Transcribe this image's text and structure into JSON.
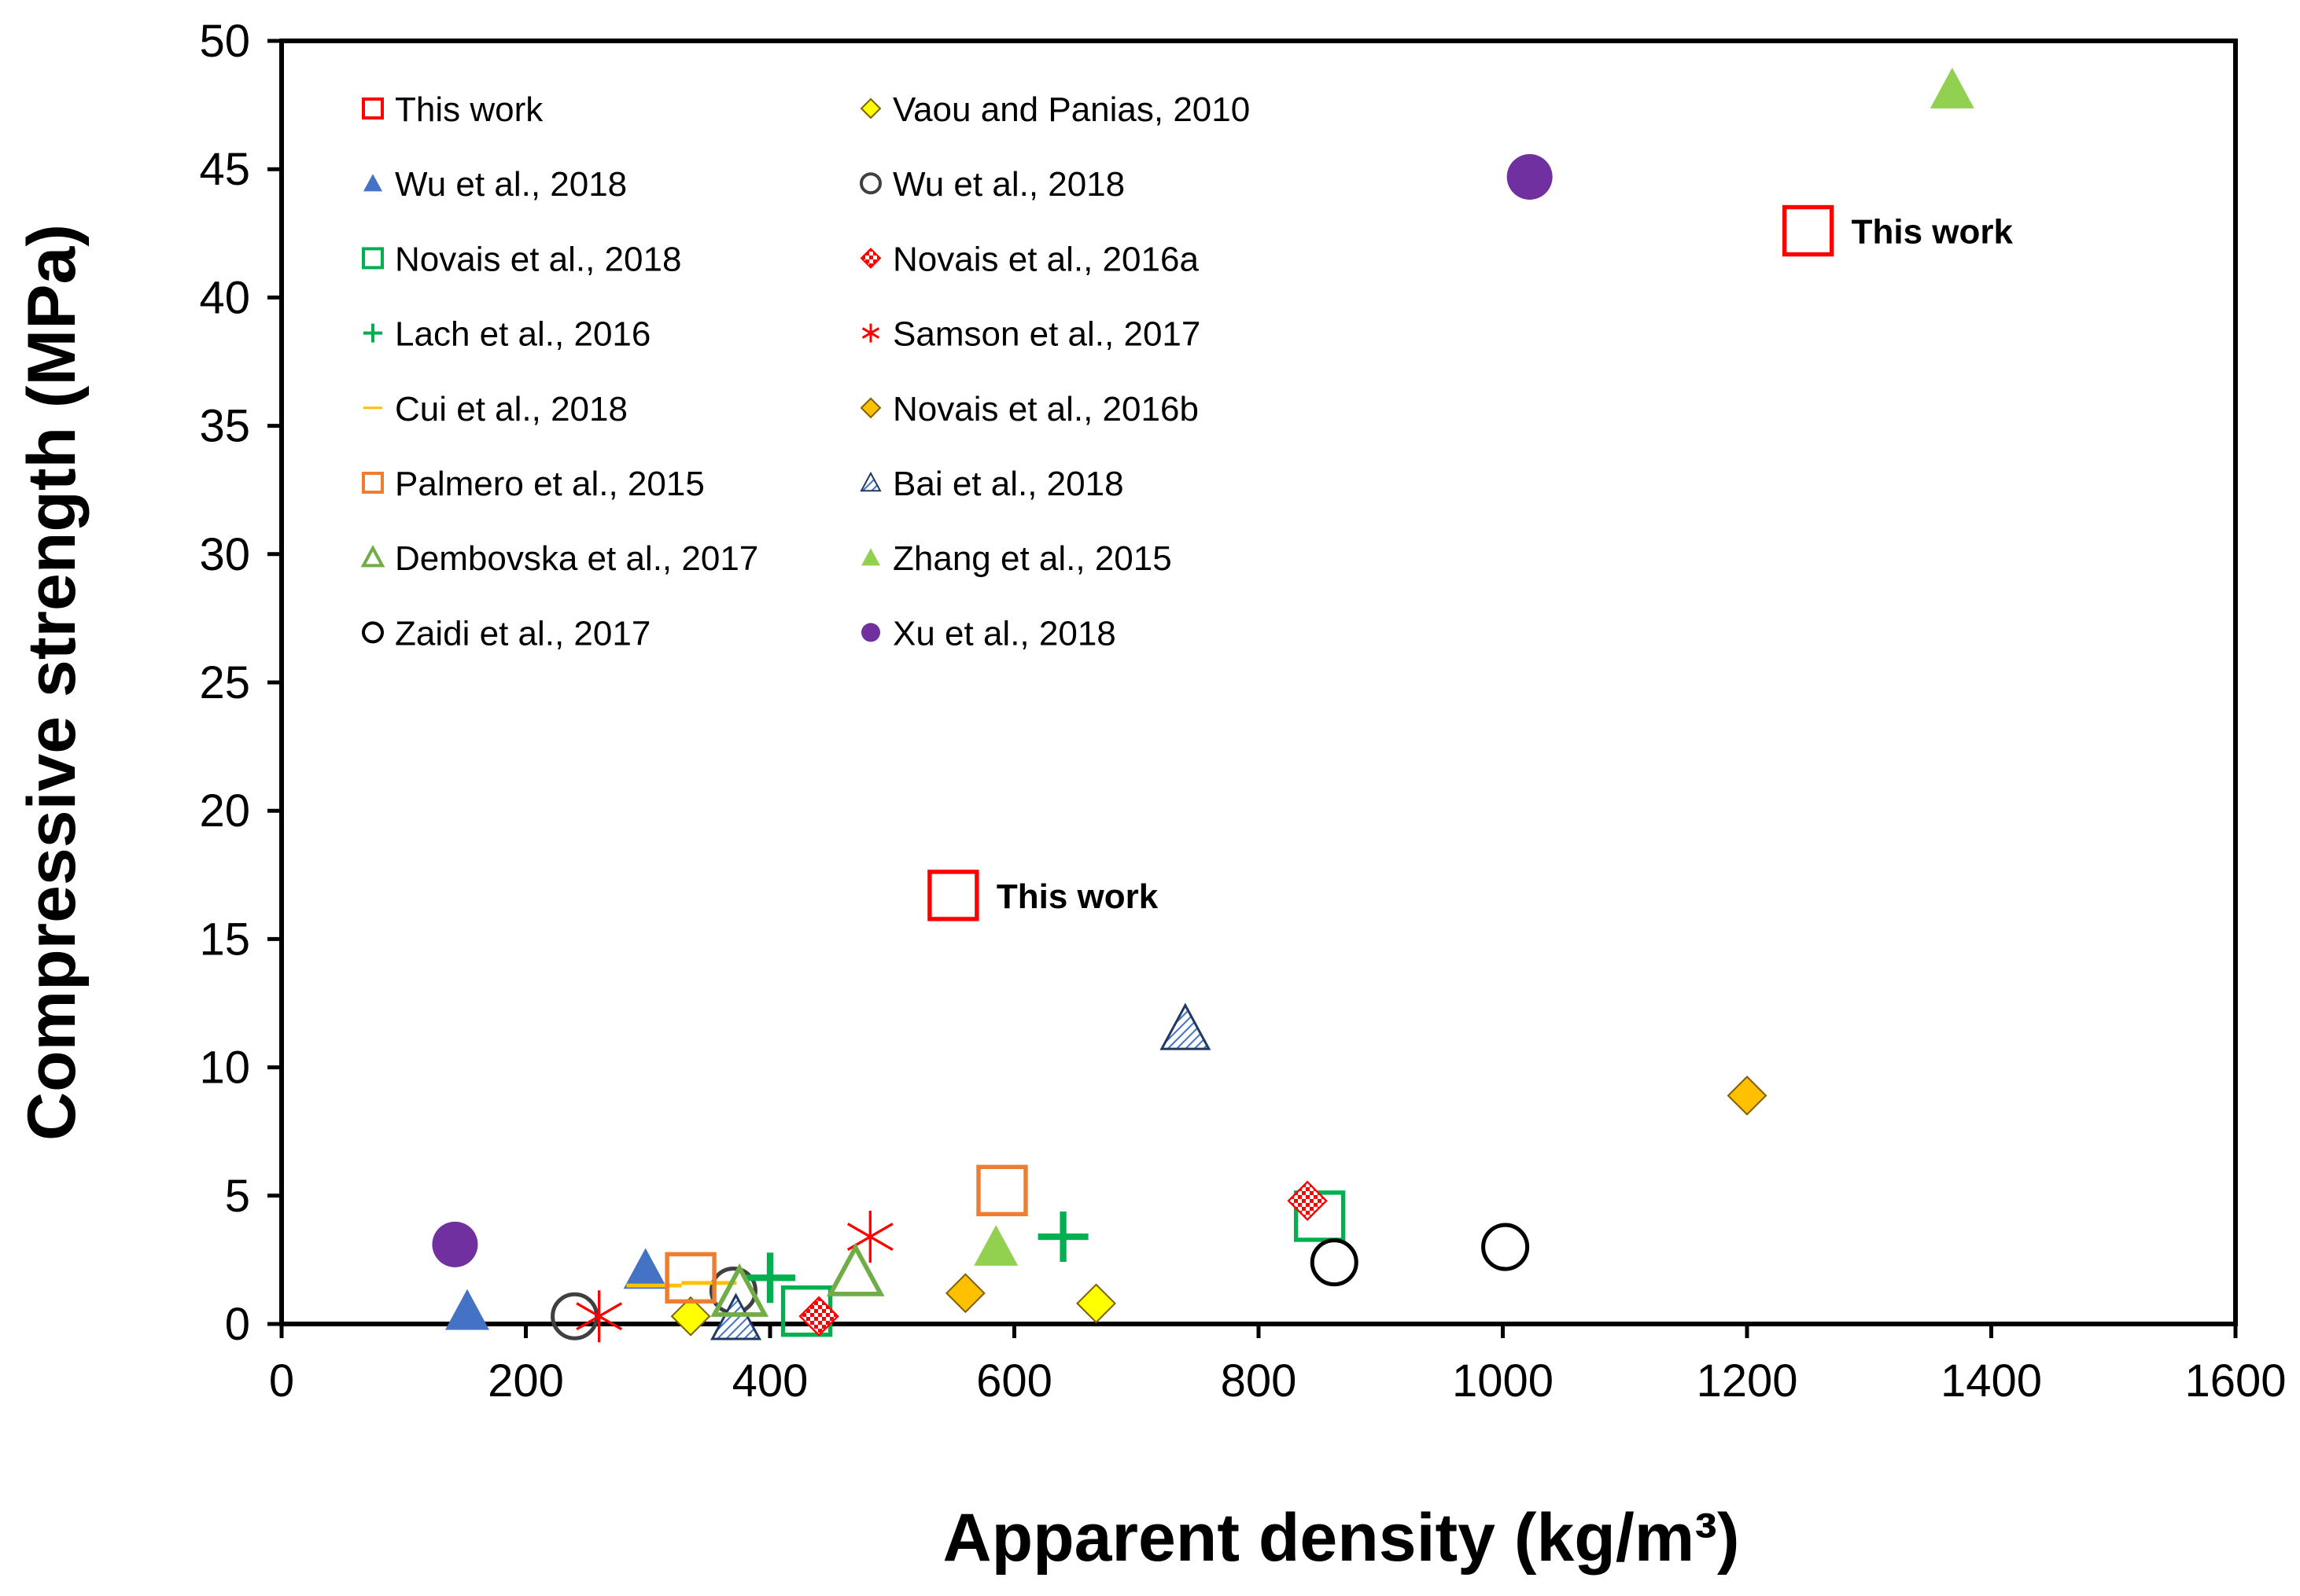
{
  "chart_data": {
    "type": "scatter",
    "title": "",
    "xlabel": "Apparent density (kg/m³)",
    "ylabel": "Compressive strength (MPa)",
    "xlim": [
      0,
      1600
    ],
    "ylim": [
      0,
      50
    ],
    "xticks": [
      0,
      200,
      400,
      600,
      800,
      1000,
      1200,
      1400,
      1600
    ],
    "yticks": [
      0,
      5,
      10,
      15,
      20,
      25,
      30,
      35,
      40,
      45,
      50
    ],
    "grid": false,
    "legend_position": "top-left",
    "series": [
      {
        "name": "This work",
        "marker": "square-open",
        "color": "#ff0000",
        "points": [
          [
            550,
            16.7
          ],
          [
            1250,
            42.6
          ]
        ]
      },
      {
        "name": "Vaou and Panias, 2010",
        "marker": "diamond",
        "color": "#ffff00",
        "points": [
          [
            335,
            0.3
          ],
          [
            667,
            0.8
          ]
        ]
      },
      {
        "name": "Wu et al., 2018",
        "marker": "triangle",
        "color": "#4472c4",
        "points": [
          [
            152,
            0.5
          ],
          [
            298,
            2.1
          ]
        ]
      },
      {
        "name": "Wu et al., 2018",
        "marker": "circle-open",
        "color": "#404040",
        "points": [
          [
            240,
            0.3
          ],
          [
            370,
            1.3
          ]
        ]
      },
      {
        "name": "Novais et al., 2018",
        "marker": "square-open",
        "color": "#00b050",
        "points": [
          [
            430,
            0.5
          ],
          [
            850,
            4.2
          ]
        ]
      },
      {
        "name": "Novais et al., 2016a",
        "marker": "diamond-check",
        "color": "#ff0000",
        "points": [
          [
            440,
            0.3
          ],
          [
            840,
            4.8
          ]
        ]
      },
      {
        "name": "Lach et al., 2016",
        "marker": "plus",
        "color": "#00b050",
        "points": [
          [
            400,
            1.8
          ],
          [
            640,
            3.4
          ]
        ]
      },
      {
        "name": "Samson et al., 2017",
        "marker": "star",
        "color": "#ff0000",
        "points": [
          [
            260,
            0.3
          ],
          [
            482,
            3.4
          ]
        ]
      },
      {
        "name": "Cui et al., 2018",
        "marker": "dash",
        "color": "#ffc000",
        "points": [
          [
            305,
            1.5
          ],
          [
            350,
            1.6
          ]
        ]
      },
      {
        "name": "Novais et al., 2016b",
        "marker": "diamond",
        "color": "#ffc000",
        "points": [
          [
            560,
            1.2
          ],
          [
            1200,
            8.9
          ]
        ]
      },
      {
        "name": "Palmero et al., 2015",
        "marker": "square-open",
        "color": "#ed7d31",
        "points": [
          [
            335,
            1.8
          ],
          [
            590,
            5.2
          ]
        ]
      },
      {
        "name": "Bai et al., 2018",
        "marker": "triangle-hatch",
        "color": "#4472c4",
        "points": [
          [
            372,
            0.2
          ],
          [
            740,
            11.5
          ]
        ]
      },
      {
        "name": "Dembovska et al., 2017",
        "marker": "triangle-open",
        "color": "#70ad47",
        "points": [
          [
            375,
            1.2
          ],
          [
            470,
            2.0
          ]
        ]
      },
      {
        "name": "Zhang et al., 2015",
        "marker": "triangle",
        "color": "#92d050",
        "points": [
          [
            585,
            3.0
          ],
          [
            1368,
            48.1
          ]
        ]
      },
      {
        "name": "Zaidi et al., 2017",
        "marker": "circle-open",
        "color": "#000000",
        "points": [
          [
            862,
            2.4
          ],
          [
            1002,
            3.0
          ]
        ]
      },
      {
        "name": "Xu et al., 2018",
        "marker": "circle",
        "color": "#7030a0",
        "points": [
          [
            142,
            3.1
          ],
          [
            1022,
            44.7
          ]
        ]
      }
    ],
    "annotations": [
      {
        "text": "This work",
        "x": 550,
        "y": 16.7
      },
      {
        "text": "This work",
        "x": 1250,
        "y": 42.6
      }
    ]
  }
}
